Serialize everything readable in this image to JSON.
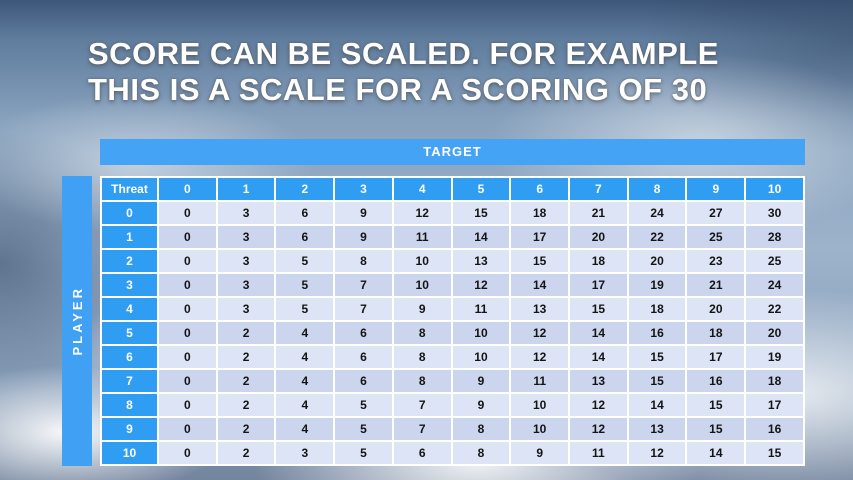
{
  "slide": {
    "title": {
      "line1": "SCORE CAN BE SCALED. FOR EXAMPLE",
      "line2": "THIS IS A SCALE FOR A SCORING OF 30"
    }
  },
  "table": {
    "target_label": "TARGET",
    "player_label": "PLAYER",
    "threat_label": "Threat",
    "column_headers": [
      "0",
      "1",
      "2",
      "3",
      "4",
      "5",
      "6",
      "7",
      "8",
      "9",
      "10"
    ],
    "rows": [
      {
        "threat": "0",
        "values": [
          0,
          3,
          6,
          9,
          12,
          15,
          18,
          21,
          24,
          27,
          30
        ]
      },
      {
        "threat": "1",
        "values": [
          0,
          3,
          6,
          9,
          11,
          14,
          17,
          20,
          22,
          25,
          28
        ]
      },
      {
        "threat": "2",
        "values": [
          0,
          3,
          5,
          8,
          10,
          13,
          15,
          18,
          20,
          23,
          25
        ]
      },
      {
        "threat": "3",
        "values": [
          0,
          3,
          5,
          7,
          10,
          12,
          14,
          17,
          19,
          21,
          24
        ]
      },
      {
        "threat": "4",
        "values": [
          0,
          3,
          5,
          7,
          9,
          11,
          13,
          15,
          18,
          20,
          22
        ]
      },
      {
        "threat": "5",
        "values": [
          0,
          2,
          4,
          6,
          8,
          10,
          12,
          14,
          16,
          18,
          20
        ]
      },
      {
        "threat": "6",
        "values": [
          0,
          2,
          4,
          6,
          8,
          10,
          12,
          14,
          15,
          17,
          19
        ]
      },
      {
        "threat": "7",
        "values": [
          0,
          2,
          4,
          6,
          8,
          9,
          11,
          13,
          15,
          16,
          18
        ]
      },
      {
        "threat": "8",
        "values": [
          0,
          2,
          4,
          5,
          7,
          9,
          10,
          12,
          14,
          15,
          17
        ]
      },
      {
        "threat": "9",
        "values": [
          0,
          2,
          4,
          5,
          7,
          8,
          10,
          12,
          13,
          15,
          16
        ]
      },
      {
        "threat": "10",
        "values": [
          0,
          2,
          3,
          5,
          6,
          8,
          9,
          11,
          12,
          14,
          15
        ]
      }
    ]
  },
  "colors": {
    "header_blue": "#2f9df2",
    "target_bar_blue": "#45a3f5",
    "band_light": "#dde4f5",
    "band_dark": "#cbd5ee",
    "title_text": "#ffffff"
  }
}
